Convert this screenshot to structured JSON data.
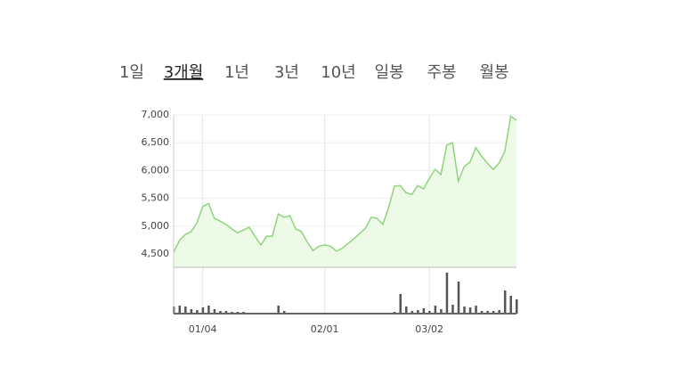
{
  "tabs": [
    {
      "label": "1일"
    },
    {
      "label": "3개월",
      "selected": true
    },
    {
      "label": "1년"
    },
    {
      "label": "3년"
    },
    {
      "label": "10년"
    },
    {
      "label": "일봉"
    },
    {
      "label": "주봉"
    },
    {
      "label": "월봉"
    }
  ],
  "chart_data": {
    "type": "area",
    "categories": [
      null,
      null,
      null,
      null,
      null,
      "01/04",
      null,
      null,
      null,
      null,
      null,
      null,
      null,
      null,
      null,
      null,
      null,
      null,
      null,
      null,
      null,
      null,
      null,
      null,
      null,
      null,
      "02/01",
      null,
      null,
      null,
      null,
      null,
      null,
      null,
      null,
      null,
      null,
      null,
      null,
      null,
      null,
      null,
      null,
      null,
      "03/02",
      null,
      null,
      null,
      null,
      null,
      null,
      null,
      null,
      null,
      null,
      null,
      null,
      null,
      null,
      null
    ],
    "series": [
      {
        "color": "#8fd47a",
        "values": [
          4530,
          4740,
          4850,
          4900,
          5060,
          5350,
          5410,
          5140,
          5090,
          5030,
          4950,
          4880,
          4930,
          4980,
          4820,
          4660,
          4820,
          4820,
          5220,
          5160,
          5190,
          4950,
          4900,
          4710,
          4560,
          4640,
          4660,
          4640,
          4550,
          4600,
          4690,
          4770,
          4870,
          4960,
          5160,
          5140,
          5030,
          5330,
          5720,
          5730,
          5600,
          5570,
          5730,
          5670,
          5860,
          6020,
          5930,
          6460,
          6500,
          5810,
          6070,
          6150,
          6410,
          6260,
          6130,
          6020,
          6130,
          6340,
          6980,
          6900
        ]
      },
      {
        "color": "#555555",
        "values": [
          8,
          9,
          8,
          5,
          4,
          7,
          9,
          5,
          3,
          3,
          2,
          2,
          2,
          1,
          1,
          1,
          1,
          1,
          9,
          3,
          1,
          1,
          1,
          1,
          1,
          1,
          1,
          1,
          1,
          1,
          1,
          1,
          1,
          1,
          1,
          1,
          1,
          1,
          2,
          22,
          8,
          3,
          4,
          6,
          3,
          9,
          5,
          46,
          10,
          36,
          8,
          7,
          9,
          3,
          3,
          3,
          4,
          26,
          20,
          16
        ]
      }
    ],
    "ylim": [
      4260,
      7000
    ],
    "yticks": [
      {
        "value": 4500,
        "label": "4,500"
      },
      {
        "value": 5000,
        "label": "5,000"
      },
      {
        "value": 5500,
        "label": "5,500"
      },
      {
        "value": 6000,
        "label": "6,000"
      },
      {
        "value": 6500,
        "label": "6,500"
      },
      {
        "value": 7000,
        "label": "7,000"
      }
    ],
    "grid": true
  }
}
